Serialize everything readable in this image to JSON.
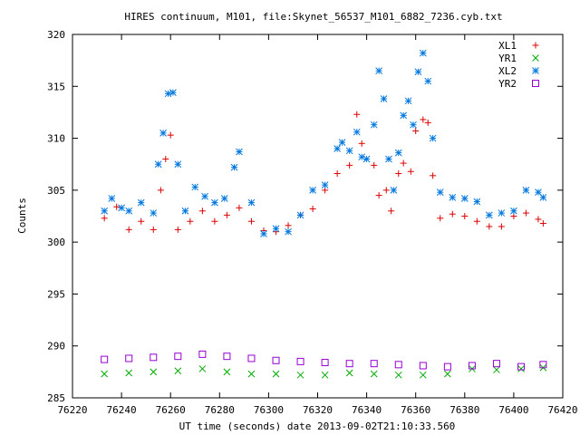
{
  "chart_data": {
    "type": "scatter",
    "title": "HIRES continuum, M101, file:Skynet_56537_M101_6882_7236.cyb.txt",
    "xlabel": "UT time (seconds) date 2013-09-02T21:10:33.560",
    "ylabel": "Counts",
    "xlim": [
      76220,
      76420
    ],
    "ylim": [
      285,
      320
    ],
    "xticks": [
      76220,
      76240,
      76260,
      76280,
      76300,
      76320,
      76340,
      76360,
      76380,
      76400,
      76420
    ],
    "yticks": [
      285,
      290,
      295,
      300,
      305,
      310,
      315,
      320
    ],
    "grid": false,
    "legend_position": "top-right",
    "series": [
      {
        "name": "XL1",
        "marker": "plus",
        "color": "#dd0000",
        "x": [
          76233,
          76238,
          76243,
          76248,
          76253,
          76256,
          76258,
          76260,
          76263,
          76268,
          76273,
          76278,
          76283,
          76288,
          76293,
          76298,
          76303,
          76308,
          76313,
          76318,
          76323,
          76328,
          76333,
          76336,
          76338,
          76343,
          76345,
          76348,
          76350,
          76353,
          76355,
          76358,
          76360,
          76363,
          76365,
          76367,
          76370,
          76375,
          76380,
          76385,
          76390,
          76395,
          76400,
          76405,
          76410,
          76412
        ],
        "y": [
          302.3,
          303.4,
          301.2,
          302.0,
          301.2,
          305.0,
          308.0,
          310.3,
          301.2,
          302.0,
          303.0,
          302.0,
          302.6,
          303.3,
          302.0,
          301.1,
          301.0,
          301.6,
          302.6,
          303.2,
          305.0,
          306.6,
          307.4,
          312.3,
          309.5,
          307.4,
          304.5,
          305.0,
          303.0,
          306.6,
          307.6,
          306.8,
          310.7,
          311.8,
          311.5,
          306.4,
          302.3,
          302.7,
          302.5,
          302.0,
          301.5,
          301.5,
          302.5,
          302.8,
          302.2,
          301.8
        ]
      },
      {
        "name": "YR1",
        "marker": "cross",
        "color": "#00aa00",
        "x": [
          76233,
          76243,
          76253,
          76263,
          76273,
          76283,
          76293,
          76303,
          76313,
          76323,
          76333,
          76343,
          76353,
          76363,
          76373,
          76383,
          76393,
          76403,
          76412
        ],
        "y": [
          287.3,
          287.4,
          287.5,
          287.6,
          287.8,
          287.5,
          287.3,
          287.3,
          287.2,
          287.2,
          287.4,
          287.3,
          287.2,
          287.2,
          287.3,
          287.8,
          287.7,
          287.8,
          287.9
        ]
      },
      {
        "name": "XL2",
        "marker": "star",
        "color": "#0077dd",
        "x": [
          76233,
          76236,
          76240,
          76243,
          76248,
          76253,
          76255,
          76257,
          76259,
          76261,
          76263,
          76266,
          76270,
          76274,
          76278,
          76282,
          76286,
          76288,
          76293,
          76298,
          76303,
          76308,
          76313,
          76318,
          76323,
          76328,
          76330,
          76333,
          76336,
          76338,
          76340,
          76343,
          76345,
          76347,
          76349,
          76351,
          76353,
          76355,
          76357,
          76359,
          76361,
          76363,
          76365,
          76367,
          76370,
          76375,
          76380,
          76385,
          76390,
          76395,
          76400,
          76405,
          76410,
          76412
        ],
        "y": [
          303.0,
          304.2,
          303.3,
          303.0,
          303.8,
          302.8,
          307.5,
          310.5,
          314.3,
          314.4,
          307.5,
          303.0,
          305.3,
          304.4,
          303.8,
          304.2,
          307.2,
          308.7,
          303.8,
          300.8,
          301.3,
          301.0,
          302.6,
          305.0,
          305.5,
          309.0,
          309.6,
          308.8,
          310.6,
          308.2,
          308.0,
          311.3,
          316.5,
          313.8,
          308.0,
          305.0,
          308.6,
          312.2,
          313.6,
          311.3,
          316.4,
          318.2,
          315.5,
          310.0,
          304.8,
          304.3,
          304.2,
          303.9,
          302.6,
          302.8,
          303.0,
          305.0,
          304.8,
          304.3
        ]
      },
      {
        "name": "YR2",
        "marker": "square",
        "color": "#9500d3",
        "x": [
          76233,
          76243,
          76253,
          76263,
          76273,
          76283,
          76293,
          76303,
          76313,
          76323,
          76333,
          76343,
          76353,
          76363,
          76373,
          76383,
          76393,
          76403,
          76412
        ],
        "y": [
          288.7,
          288.8,
          288.9,
          289.0,
          289.2,
          289.0,
          288.8,
          288.6,
          288.5,
          288.4,
          288.3,
          288.3,
          288.2,
          288.1,
          288.0,
          288.1,
          288.3,
          288.0,
          288.2
        ]
      }
    ]
  }
}
